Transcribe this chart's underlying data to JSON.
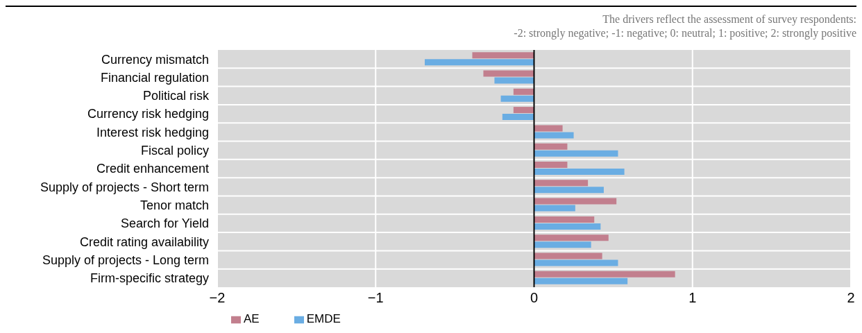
{
  "chart_data": {
    "type": "bar",
    "orientation": "horizontal",
    "annotations": [
      "The drivers reflect the assessment of survey respondents:",
      "-2: strongly negative; -1: negative; 0: neutral; 1: positive; 2: strongly positive"
    ],
    "categories": [
      "Currency mismatch",
      "Financial regulation",
      "Political risk",
      "Currency risk hedging",
      "Interest risk hedging",
      "Fiscal policy",
      "Credit enhancement",
      "Supply of projects - Short term",
      "Tenor match",
      "Search for Yield",
      "Credit rating availability",
      "Supply of projects - Long term",
      "Firm-specific strategy"
    ],
    "series": [
      {
        "name": "AE",
        "color": "#c27f8e",
        "values": [
          -0.39,
          -0.32,
          -0.13,
          -0.13,
          0.18,
          0.21,
          0.21,
          0.34,
          0.52,
          0.38,
          0.47,
          0.43,
          0.89
        ]
      },
      {
        "name": "EMDE",
        "color": "#6aade3",
        "values": [
          -0.69,
          -0.25,
          -0.21,
          -0.2,
          0.25,
          0.53,
          0.57,
          0.44,
          0.26,
          0.42,
          0.36,
          0.53,
          0.59
        ]
      }
    ],
    "xlim": [
      -2,
      2
    ],
    "xticks": [
      {
        "value": -2,
        "label": "−2"
      },
      {
        "value": -1,
        "label": "−1"
      },
      0,
      1,
      2
    ],
    "ref_lines": [
      {
        "axis": "x",
        "value": 0,
        "color": "#000000"
      }
    ],
    "grid": true,
    "legend": "bottom left"
  }
}
